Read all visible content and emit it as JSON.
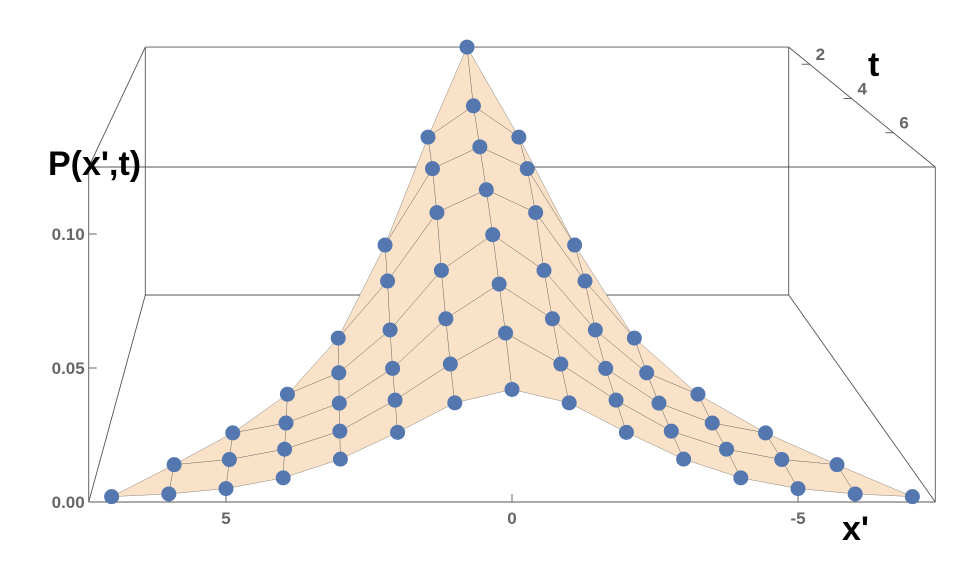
{
  "chart_data": {
    "type": "surface3d",
    "x_label": "x'",
    "y_label": "P(x',t)",
    "t_label": "t",
    "xlim": [
      7.4,
      -7.4
    ],
    "xticks": [
      5,
      0,
      -5
    ],
    "tlim": [
      1,
      8
    ],
    "tticks": [
      2,
      4,
      6
    ],
    "ylim": [
      0,
      0.125
    ],
    "yticks": [
      {
        "value": 0,
        "label": "0.00"
      },
      {
        "value": 0.05,
        "label": "0.05"
      },
      {
        "value": 0.1,
        "label": "0.10"
      }
    ],
    "surface_color": "#f9e2c8",
    "point_color": "#5577b0",
    "rows": [
      {
        "t": 1,
        "x": [
          0
        ],
        "values": [
          0.125
        ]
      },
      {
        "t": 2,
        "x": [
          1,
          0,
          -1
        ],
        "values": [
          0.09,
          0.105,
          0.09
        ]
      },
      {
        "t": 3,
        "x": [
          2,
          1,
          0,
          -1,
          -2
        ],
        "values": [
          0.05,
          0.085,
          0.095,
          0.085,
          0.05
        ]
      },
      {
        "t": 4,
        "x": [
          3,
          2,
          1,
          0,
          -1,
          -2,
          -3
        ],
        "values": [
          0.02,
          0.045,
          0.075,
          0.085,
          0.075,
          0.045,
          0.02
        ]
      },
      {
        "t": 5,
        "x": [
          4,
          3,
          2,
          1,
          0,
          -1,
          -2,
          -3,
          -4
        ],
        "values": [
          0.008,
          0.017,
          0.035,
          0.06,
          0.075,
          0.06,
          0.035,
          0.017,
          0.008
        ]
      },
      {
        "t": 6,
        "x": [
          5,
          4,
          3,
          2,
          1,
          0,
          -1,
          -2,
          -3,
          -4,
          -5
        ],
        "values": [
          0.004,
          0.008,
          0.016,
          0.03,
          0.05,
          0.064,
          0.05,
          0.03,
          0.016,
          0.008,
          0.004
        ]
      },
      {
        "t": 7,
        "x": [
          6,
          5,
          4,
          3,
          2,
          1,
          0,
          -1,
          -2,
          -3,
          -4,
          -5,
          -6
        ],
        "values": [
          0.003,
          0.005,
          0.009,
          0.016,
          0.028,
          0.042,
          0.054,
          0.042,
          0.028,
          0.016,
          0.009,
          0.005,
          0.003
        ]
      },
      {
        "t": 8,
        "x": [
          7,
          6,
          5,
          4,
          3,
          2,
          1,
          0,
          -1,
          -2,
          -3,
          -4,
          -5,
          -6,
          -7
        ],
        "values": [
          0.002,
          0.003,
          0.005,
          0.009,
          0.016,
          0.026,
          0.037,
          0.042,
          0.037,
          0.026,
          0.016,
          0.009,
          0.005,
          0.003,
          0.002
        ]
      }
    ]
  }
}
